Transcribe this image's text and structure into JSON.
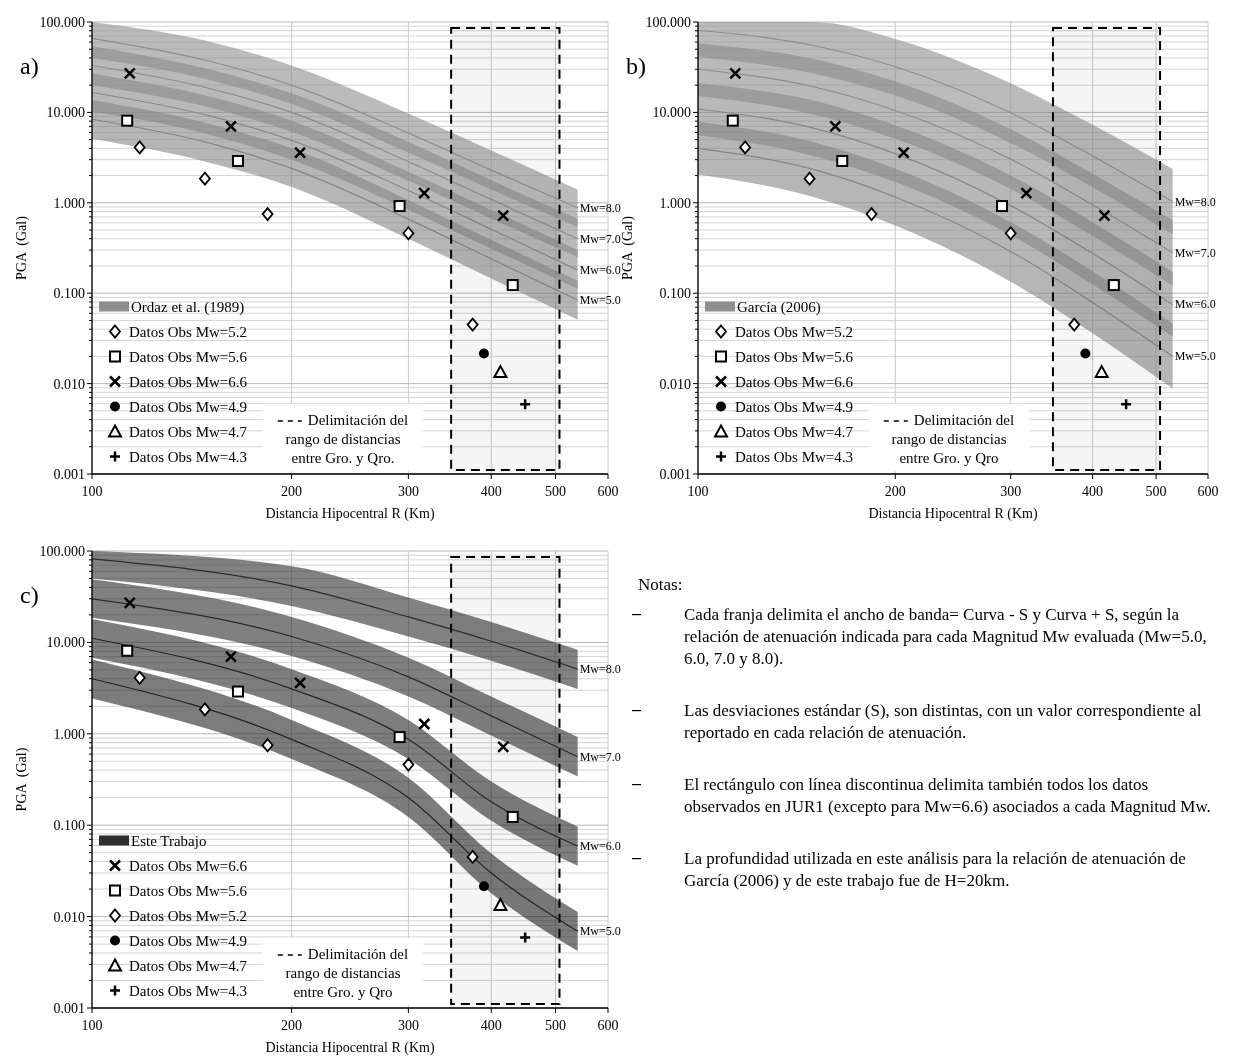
{
  "chart_data": [
    {
      "type": "scatter",
      "title": "a)",
      "xlabel": "Distancia Hipocentral R (Km)",
      "ylabel": "PGA  (Gal)",
      "log": "xy",
      "xlim": [
        100,
        600
      ],
      "ylim": [
        0.001,
        100
      ],
      "xticks": [
        100,
        200,
        300,
        400,
        500,
        600
      ],
      "yticks": [
        {
          "value": 0.001,
          "label": "0.001"
        },
        {
          "value": 0.01,
          "label": "0.010"
        },
        {
          "value": 0.1,
          "label": "0.100"
        },
        {
          "value": 1,
          "label": "1.000"
        },
        {
          "value": 10,
          "label": "10.000"
        },
        {
          "value": 100,
          "label": "100.000"
        },
        {
          "value": 0.002,
          "label": null
        },
        {
          "value": 0.003,
          "label": null
        },
        {
          "value": 0.004,
          "label": null
        },
        {
          "value": 0.005,
          "label": null
        },
        {
          "value": 0.006,
          "label": null
        },
        {
          "value": 0.007,
          "label": null
        },
        {
          "value": 0.008,
          "label": null
        },
        {
          "value": 0.009,
          "label": null
        },
        {
          "value": 0.02,
          "label": null
        },
        {
          "value": 0.03,
          "label": null
        },
        {
          "value": 0.04,
          "label": null
        },
        {
          "value": 0.05,
          "label": null
        },
        {
          "value": 0.06,
          "label": null
        },
        {
          "value": 0.07,
          "label": null
        },
        {
          "value": 0.08,
          "label": null
        },
        {
          "value": 0.09,
          "label": null
        },
        {
          "value": 0.2,
          "label": null
        },
        {
          "value": 0.3,
          "label": null
        },
        {
          "value": 0.4,
          "label": null
        },
        {
          "value": 0.5,
          "label": null
        },
        {
          "value": 0.6,
          "label": null
        },
        {
          "value": 0.7,
          "label": null
        },
        {
          "value": 0.8,
          "label": null
        },
        {
          "value": 0.9,
          "label": null
        },
        {
          "value": 2,
          "label": null
        },
        {
          "value": 3,
          "label": null
        },
        {
          "value": 4,
          "label": null
        },
        {
          "value": 5,
          "label": null
        },
        {
          "value": 6,
          "label": null
        },
        {
          "value": 7,
          "label": null
        },
        {
          "value": 8,
          "label": null
        },
        {
          "value": 9,
          "label": null
        },
        {
          "value": 20,
          "label": null
        },
        {
          "value": 30,
          "label": null
        },
        {
          "value": 40,
          "label": null
        },
        {
          "value": 50,
          "label": null
        },
        {
          "value": 60,
          "label": null
        },
        {
          "value": 70,
          "label": null
        },
        {
          "value": 80,
          "label": null
        },
        {
          "value": 90,
          "label": null
        }
      ],
      "grid": true,
      "legend": "bottom left",
      "legend_title": "Ordaz et al. (1989)",
      "series": [
        {
          "type": "line",
          "name": "Mw=8.0",
          "color": "#8e8e8e",
          "x": [
            100,
            150,
            200,
            300,
            400,
            540
          ],
          "values": [
            66,
            37,
            20,
            5.9,
            2.3,
            0.88
          ],
          "lower": [
            40,
            23,
            12.4,
            3.6,
            1.4,
            0.54
          ],
          "upper": [
            100,
            61,
            33,
            9.7,
            3.8,
            1.4
          ]
        },
        {
          "type": "line",
          "name": "Mw=7.0",
          "color": "#8b8b8b",
          "x": [
            100,
            150,
            200,
            300,
            400,
            540
          ],
          "values": [
            33,
            18.5,
            10,
            2.85,
            1.09,
            0.4
          ],
          "lower": [
            20,
            11.4,
            6.1,
            1.75,
            0.67,
            0.25
          ],
          "upper": [
            54,
            30,
            16.3,
            4.7,
            1.78,
            0.66
          ]
        },
        {
          "type": "line",
          "name": "Mw=6.0",
          "color": "#888888",
          "x": [
            100,
            150,
            200,
            300,
            400,
            540
          ],
          "values": [
            16.6,
            9.2,
            4.9,
            1.37,
            0.51,
            0.18
          ],
          "lower": [
            10.2,
            5.7,
            3.0,
            0.84,
            0.31,
            0.112
          ],
          "upper": [
            27,
            15.1,
            8.1,
            2.2,
            0.83,
            0.3
          ]
        },
        {
          "type": "line",
          "name": "Mw=5.0",
          "color": "#858585",
          "x": [
            100,
            150,
            200,
            300,
            400,
            540
          ],
          "values": [
            8.4,
            4.6,
            2.4,
            0.66,
            0.24,
            0.084
          ],
          "lower": [
            5.1,
            2.8,
            1.5,
            0.4,
            0.145,
            0.051
          ],
          "upper": [
            13.7,
            7.5,
            4.0,
            1.07,
            0.39,
            0.137
          ]
        },
        {
          "name": "Datos Obs Mw=5.2",
          "color": "#000000",
          "marker": "diamond",
          "x": [
            118,
            148,
            184,
            300,
            375
          ],
          "values": [
            4.1,
            1.85,
            0.75,
            0.46,
            0.045
          ]
        },
        {
          "name": "Datos Obs Mw=5.6",
          "color": "#000000",
          "marker": "square",
          "x": [
            113,
            166,
            291,
            431
          ],
          "values": [
            8.1,
            2.9,
            0.92,
            0.123
          ]
        },
        {
          "name": "Datos Obs Mw=6.6",
          "color": "#000000",
          "marker": "x",
          "x": [
            114,
            162,
            206,
            317,
            417
          ],
          "values": [
            27,
            7.0,
            3.6,
            1.28,
            0.72
          ]
        },
        {
          "name": "Datos Obs Mw=4.9",
          "color": "#000000",
          "marker": "circle",
          "x": [
            390
          ],
          "values": [
            0.0215
          ]
        },
        {
          "name": "Datos Obs Mw=4.7",
          "color": "#000000",
          "marker": "triangle",
          "x": [
            413
          ],
          "values": [
            0.0134
          ]
        },
        {
          "name": "Datos Obs Mw=4.3",
          "color": "#000000",
          "marker": "cross",
          "x": [
            450
          ],
          "values": [
            0.0059
          ]
        }
      ],
      "bands": [
        {
          "axis": "x",
          "from": 348,
          "to": 507,
          "label": "Delimitación del rango de distancias entre Gro. y Qro.",
          "color": "#000000"
        }
      ]
    },
    {
      "type": "scatter",
      "title": "b)",
      "xlabel": "Distancia Hipocentral R (Km)",
      "ylabel": "PGA  (Gal)",
      "log": "xy",
      "xlim": [
        100,
        600
      ],
      "ylim": [
        0.001,
        100
      ],
      "xticks": [
        100,
        200,
        300,
        400,
        500,
        600
      ],
      "yticks": [
        {
          "value": 0.001,
          "label": "0.001"
        },
        {
          "value": 0.01,
          "label": "0.010"
        },
        {
          "value": 0.1,
          "label": "0.100"
        },
        {
          "value": 1,
          "label": "1.000"
        },
        {
          "value": 10,
          "label": "10.000"
        },
        {
          "value": 100,
          "label": "100.000"
        },
        {
          "value": 0.002,
          "label": null
        },
        {
          "value": 0.003,
          "label": null
        },
        {
          "value": 0.004,
          "label": null
        },
        {
          "value": 0.005,
          "label": null
        },
        {
          "value": 0.006,
          "label": null
        },
        {
          "value": 0.007,
          "label": null
        },
        {
          "value": 0.008,
          "label": null
        },
        {
          "value": 0.009,
          "label": null
        },
        {
          "value": 0.02,
          "label": null
        },
        {
          "value": 0.03,
          "label": null
        },
        {
          "value": 0.04,
          "label": null
        },
        {
          "value": 0.05,
          "label": null
        },
        {
          "value": 0.06,
          "label": null
        },
        {
          "value": 0.07,
          "label": null
        },
        {
          "value": 0.08,
          "label": null
        },
        {
          "value": 0.09,
          "label": null
        },
        {
          "value": 0.2,
          "label": null
        },
        {
          "value": 0.3,
          "label": null
        },
        {
          "value": 0.4,
          "label": null
        },
        {
          "value": 0.5,
          "label": null
        },
        {
          "value": 0.6,
          "label": null
        },
        {
          "value": 0.7,
          "label": null
        },
        {
          "value": 0.8,
          "label": null
        },
        {
          "value": 0.9,
          "label": null
        },
        {
          "value": 2,
          "label": null
        },
        {
          "value": 3,
          "label": null
        },
        {
          "value": 4,
          "label": null
        },
        {
          "value": 5,
          "label": null
        },
        {
          "value": 6,
          "label": null
        },
        {
          "value": 7,
          "label": null
        },
        {
          "value": 8,
          "label": null
        },
        {
          "value": 9,
          "label": null
        },
        {
          "value": 20,
          "label": null
        },
        {
          "value": 30,
          "label": null
        },
        {
          "value": 40,
          "label": null
        },
        {
          "value": 50,
          "label": null
        },
        {
          "value": 60,
          "label": null
        },
        {
          "value": 70,
          "label": null
        },
        {
          "value": 80,
          "label": null
        },
        {
          "value": 90,
          "label": null
        }
      ],
      "grid": true,
      "legend": "bottom left",
      "legend_title": "García (2006)",
      "series": [
        {
          "type": "line",
          "name": "Mw=8.0",
          "color": "#8e8e8e",
          "x": [
            100,
            150,
            200,
            300,
            400,
            530
          ],
          "values": [
            81,
            55,
            32,
            9.9,
            3.3,
            1.03
          ],
          "lower": [
            41,
            27,
            15.4,
            4.6,
            1.49,
            0.45
          ],
          "upper": [
            100,
            100,
            65,
            21,
            7.3,
            2.37
          ]
        },
        {
          "type": "line",
          "name": "Mw=7.0",
          "color": "#8b8b8b",
          "x": [
            100,
            150,
            200,
            300,
            400,
            530
          ],
          "values": [
            30,
            19.2,
            10.5,
            3.04,
            0.95,
            0.28
          ],
          "lower": [
            15.2,
            9.5,
            5.1,
            1.42,
            0.43,
            0.121
          ],
          "upper": [
            58,
            39,
            22,
            6.5,
            2.1,
            0.64
          ]
        },
        {
          "type": "line",
          "name": "Mw=6.0",
          "color": "#888888",
          "x": [
            100,
            150,
            200,
            300,
            400,
            530
          ],
          "values": [
            10.9,
            6.7,
            3.5,
            0.93,
            0.275,
            0.075
          ],
          "lower": [
            5.6,
            3.3,
            1.7,
            0.44,
            0.125,
            0.033
          ],
          "upper": [
            21,
            13.5,
            7.2,
            2.0,
            0.61,
            0.172
          ]
        },
        {
          "type": "line",
          "name": "Mw=5.0",
          "color": "#858585",
          "x": [
            100,
            150,
            200,
            300,
            400,
            530
          ],
          "values": [
            4.0,
            2.34,
            1.16,
            0.29,
            0.079,
            0.02
          ],
          "lower": [
            2.06,
            1.16,
            0.56,
            0.134,
            0.036,
            0.0088
          ],
          "upper": [
            7.9,
            4.7,
            2.39,
            0.61,
            0.175,
            0.046
          ]
        },
        {
          "name": "Datos Obs Mw=5.2",
          "color": "#000000",
          "marker": "diamond",
          "x": [
            118,
            148,
            184,
            300,
            375
          ],
          "values": [
            4.1,
            1.85,
            0.75,
            0.46,
            0.045
          ]
        },
        {
          "name": "Datos Obs Mw=5.6",
          "color": "#000000",
          "marker": "square",
          "x": [
            113,
            166,
            291,
            431
          ],
          "values": [
            8.1,
            2.9,
            0.92,
            0.123
          ]
        },
        {
          "name": "Datos Obs Mw=6.6",
          "color": "#000000",
          "marker": "x",
          "x": [
            114,
            162,
            206,
            317,
            417
          ],
          "values": [
            27,
            7.0,
            3.6,
            1.28,
            0.72
          ]
        },
        {
          "name": "Datos Obs Mw=4.9",
          "color": "#000000",
          "marker": "circle",
          "x": [
            390
          ],
          "values": [
            0.0215
          ]
        },
        {
          "name": "Datos Obs Mw=4.7",
          "color": "#000000",
          "marker": "triangle",
          "x": [
            413
          ],
          "values": [
            0.0134
          ]
        },
        {
          "name": "Datos Obs Mw=4.3",
          "color": "#000000",
          "marker": "cross",
          "x": [
            450
          ],
          "values": [
            0.0059
          ]
        }
      ],
      "bands": [
        {
          "axis": "x",
          "from": 348,
          "to": 507,
          "label": "Delimitación del rango de distancias entre Gro. y Qro",
          "color": "#000000"
        }
      ]
    },
    {
      "type": "scatter",
      "title": "c)",
      "xlabel": "Distancia Hipocentral R (Km)",
      "ylabel": "PGA  (Gal)",
      "log": "xy",
      "xlim": [
        100,
        600
      ],
      "ylim": [
        0.001,
        100
      ],
      "xticks": [
        100,
        200,
        300,
        400,
        500,
        600
      ],
      "yticks": [
        {
          "value": 0.001,
          "label": "0.001"
        },
        {
          "value": 0.01,
          "label": "0.010"
        },
        {
          "value": 0.1,
          "label": "0.100"
        },
        {
          "value": 1,
          "label": "1.000"
        },
        {
          "value": 10,
          "label": "10.000"
        },
        {
          "value": 100,
          "label": "100.000"
        },
        {
          "value": 0.002,
          "label": null
        },
        {
          "value": 0.003,
          "label": null
        },
        {
          "value": 0.004,
          "label": null
        },
        {
          "value": 0.005,
          "label": null
        },
        {
          "value": 0.006,
          "label": null
        },
        {
          "value": 0.007,
          "label": null
        },
        {
          "value": 0.008,
          "label": null
        },
        {
          "value": 0.009,
          "label": null
        },
        {
          "value": 0.02,
          "label": null
        },
        {
          "value": 0.03,
          "label": null
        },
        {
          "value": 0.04,
          "label": null
        },
        {
          "value": 0.05,
          "label": null
        },
        {
          "value": 0.06,
          "label": null
        },
        {
          "value": 0.07,
          "label": null
        },
        {
          "value": 0.08,
          "label": null
        },
        {
          "value": 0.09,
          "label": null
        },
        {
          "value": 0.2,
          "label": null
        },
        {
          "value": 0.3,
          "label": null
        },
        {
          "value": 0.4,
          "label": null
        },
        {
          "value": 0.5,
          "label": null
        },
        {
          "value": 0.6,
          "label": null
        },
        {
          "value": 0.7,
          "label": null
        },
        {
          "value": 0.8,
          "label": null
        },
        {
          "value": 0.9,
          "label": null
        },
        {
          "value": 2,
          "label": null
        },
        {
          "value": 3,
          "label": null
        },
        {
          "value": 4,
          "label": null
        },
        {
          "value": 5,
          "label": null
        },
        {
          "value": 6,
          "label": null
        },
        {
          "value": 7,
          "label": null
        },
        {
          "value": 8,
          "label": null
        },
        {
          "value": 9,
          "label": null
        },
        {
          "value": 20,
          "label": null
        },
        {
          "value": 30,
          "label": null
        },
        {
          "value": 40,
          "label": null
        },
        {
          "value": 50,
          "label": null
        },
        {
          "value": 60,
          "label": null
        },
        {
          "value": 70,
          "label": null
        },
        {
          "value": 80,
          "label": null
        },
        {
          "value": 90,
          "label": null
        }
      ],
      "grid": true,
      "legend": "bottom left",
      "legend_title": "Este Trabajo",
      "series": [
        {
          "type": "line",
          "name": "Mw=8.0",
          "color": "#2e2e2e",
          "x": [
            100,
            200,
            300,
            400,
            540
          ],
          "values": [
            82,
            41.5,
            19,
            10.3,
            5.1
          ],
          "lower": [
            50,
            25,
            11.6,
            6.3,
            3.1
          ],
          "upper": [
            100,
            68,
            31,
            16.7,
            8.3
          ]
        },
        {
          "type": "line",
          "name": "Mw=7.0",
          "color": "#2b2b2b",
          "x": [
            100,
            200,
            300,
            400,
            540
          ],
          "values": [
            30,
            11.6,
            4.2,
            1.57,
            0.56
          ],
          "lower": [
            18.6,
            7.1,
            2.56,
            0.96,
            0.34
          ],
          "upper": [
            49,
            19,
            6.8,
            2.56,
            0.92
          ]
        },
        {
          "type": "line",
          "name": "Mw=6.0",
          "color": "#282828",
          "x": [
            100,
            200,
            300,
            400,
            540
          ],
          "values": [
            11.1,
            3.1,
            0.87,
            0.18,
            0.059
          ],
          "lower": [
            6.8,
            1.91,
            0.53,
            0.112,
            0.036
          ],
          "upper": [
            18,
            5.1,
            1.42,
            0.3,
            0.097
          ]
        },
        {
          "type": "line",
          "name": "Mw=5.0",
          "color": "#252525",
          "x": [
            100,
            200,
            300,
            400,
            540
          ],
          "values": [
            4.0,
            0.87,
            0.2,
            0.03,
            0.0069
          ],
          "lower": [
            2.43,
            0.53,
            0.123,
            0.018,
            0.0042
          ],
          "upper": [
            6.5,
            1.42,
            0.33,
            0.049,
            0.0112
          ]
        },
        {
          "name": "Datos Obs Mw=6.6",
          "color": "#000000",
          "marker": "x",
          "x": [
            114,
            162,
            206,
            317,
            417
          ],
          "values": [
            27,
            7.0,
            3.6,
            1.28,
            0.72
          ]
        },
        {
          "name": "Datos Obs Mw=5.6",
          "color": "#000000",
          "marker": "square",
          "x": [
            113,
            166,
            291,
            431
          ],
          "values": [
            8.1,
            2.9,
            0.92,
            0.123
          ]
        },
        {
          "name": "Datos Obs Mw=5.2",
          "color": "#000000",
          "marker": "diamond",
          "x": [
            118,
            148,
            184,
            300,
            375
          ],
          "values": [
            4.1,
            1.85,
            0.75,
            0.46,
            0.045
          ]
        },
        {
          "name": "Datos Obs Mw=4.9",
          "color": "#000000",
          "marker": "circle",
          "x": [
            390
          ],
          "values": [
            0.0215
          ]
        },
        {
          "name": "Datos Obs Mw=4.7",
          "color": "#000000",
          "marker": "triangle",
          "x": [
            413
          ],
          "values": [
            0.0134
          ]
        },
        {
          "name": "Datos Obs Mw=4.3",
          "color": "#000000",
          "marker": "cross",
          "x": [
            450
          ],
          "values": [
            0.0059
          ]
        }
      ],
      "bands": [
        {
          "axis": "x",
          "from": 348,
          "to": 507,
          "label": "Delimitación del rango de distancias entre Gro. y Qro",
          "color": "#000000"
        }
      ]
    },
    {
      "type": "other",
      "title": "Notas:",
      "annotations": [
        "Cada franja delimita el ancho de banda= Curva - S y Curva + S, según la relación de atenuación indicada para cada Magnitud Mw evaluada (Mw=5.0, 6.0, 7.0 y 8.0).",
        "Las desviaciones estándar (S), son distintas, con un valor correspondiente al reportado en cada relación de atenuación.",
        "El rectángulo con línea discontinua delimita también todos los datos observados en JUR1 (excepto para Mw=6.6) asociados a cada Magnitud Mw.",
        "La profundidad utilizada en este análisis para la relación de atenuación de García (2006) y de este trabajo fue de H=20km."
      ]
    }
  ]
}
